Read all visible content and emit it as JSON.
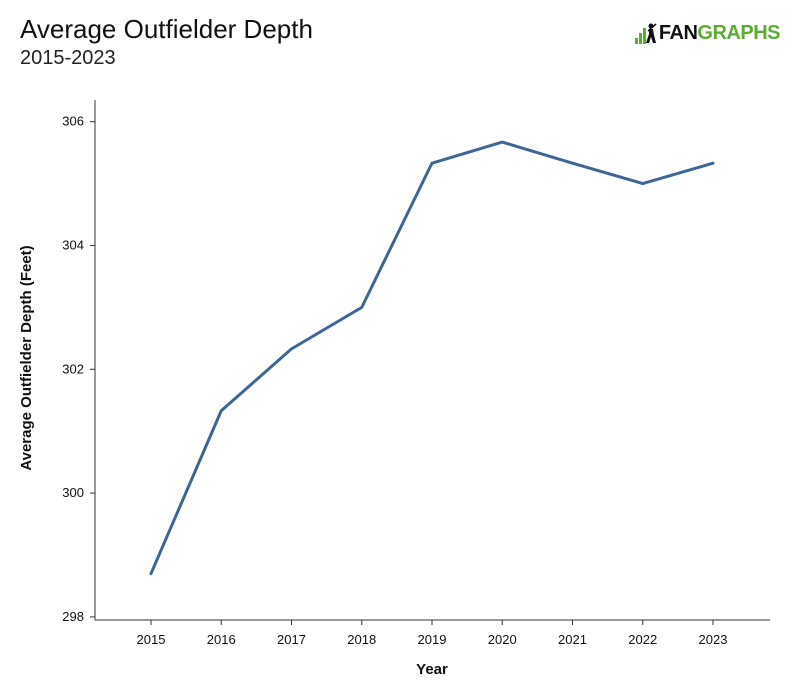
{
  "header": {
    "title": "Average Outfielder Depth",
    "subtitle": "2015-2023",
    "logo_left": "FAN",
    "logo_right": "GRAPHS"
  },
  "colors": {
    "line": "#3d6695",
    "axis": "#333333",
    "logo_green": "#5aad2e"
  },
  "chart_data": {
    "type": "line",
    "title": "Average Outfielder Depth",
    "subtitle": "2015-2023",
    "xlabel": "Year",
    "ylabel": "Average Outfielder Depth (Feet)",
    "x": [
      "2015",
      "2016",
      "2017",
      "2018",
      "2019",
      "2020",
      "2021",
      "2022",
      "2023"
    ],
    "series": [
      {
        "values": [
          298.7,
          301.33,
          302.33,
          303.0,
          305.33,
          305.67,
          305.33,
          305.0,
          305.33
        ]
      }
    ],
    "yticks": [
      298,
      300,
      302,
      304,
      306
    ],
    "ylim": [
      297.95,
      306.35
    ],
    "grid": false,
    "legend": "none"
  }
}
